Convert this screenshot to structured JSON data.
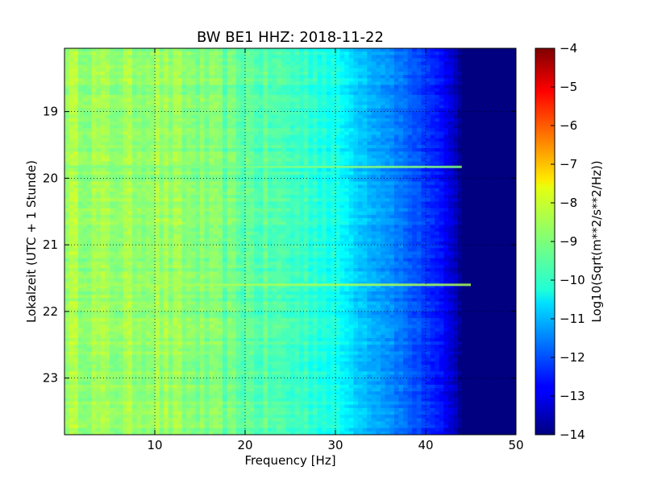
{
  "chart_data": {
    "type": "heatmap",
    "title": "BW BE1 HHZ: 2018-11-22",
    "xlabel": "Frequency [Hz]",
    "ylabel": "Lokalzeit (UTC + 1 Stunde)",
    "xlim": [
      0,
      50
    ],
    "ylim": [
      18.05,
      23.85
    ],
    "y_inverted": true,
    "x_ticks": [
      10,
      20,
      30,
      40,
      50
    ],
    "x_tick_labels": [
      "10",
      "20",
      "30",
      "40",
      "50"
    ],
    "y_ticks": [
      19,
      20,
      21,
      22,
      23
    ],
    "y_tick_labels": [
      "19",
      "20",
      "21",
      "22",
      "23"
    ],
    "grid": true,
    "colormap": "jet",
    "colorbar": {
      "label": "Log10(Sqrt(m**2/s**2/Hz))",
      "min": -14,
      "max": -4,
      "ticks": [
        -4,
        -5,
        -6,
        -7,
        -8,
        -9,
        -10,
        -11,
        -12,
        -13,
        -14
      ],
      "tick_labels": [
        "−4",
        "−5",
        "−6",
        "−7",
        "−8",
        "−9",
        "−10",
        "−11",
        "−12",
        "−13",
        "−14"
      ]
    },
    "spectral_profile": {
      "frequency_hz": [
        0,
        5,
        10,
        15,
        20,
        25,
        28,
        30,
        32,
        34,
        36,
        38,
        40,
        42,
        43,
        44,
        45,
        50
      ],
      "log10_amplitude": [
        -8.6,
        -8.8,
        -8.7,
        -9.0,
        -9.3,
        -9.6,
        -9.8,
        -10.1,
        -10.6,
        -11.0,
        -11.3,
        -11.8,
        -12.2,
        -12.8,
        -13.3,
        -13.9,
        -14.0,
        -14.0
      ]
    },
    "horizontal_lines": [
      {
        "time_h": 19.83,
        "freq_max_hz": 44,
        "log10_amplitude": -9.0
      },
      {
        "time_h": 21.6,
        "freq_max_hz": 45,
        "log10_amplitude": -8.6
      }
    ]
  }
}
